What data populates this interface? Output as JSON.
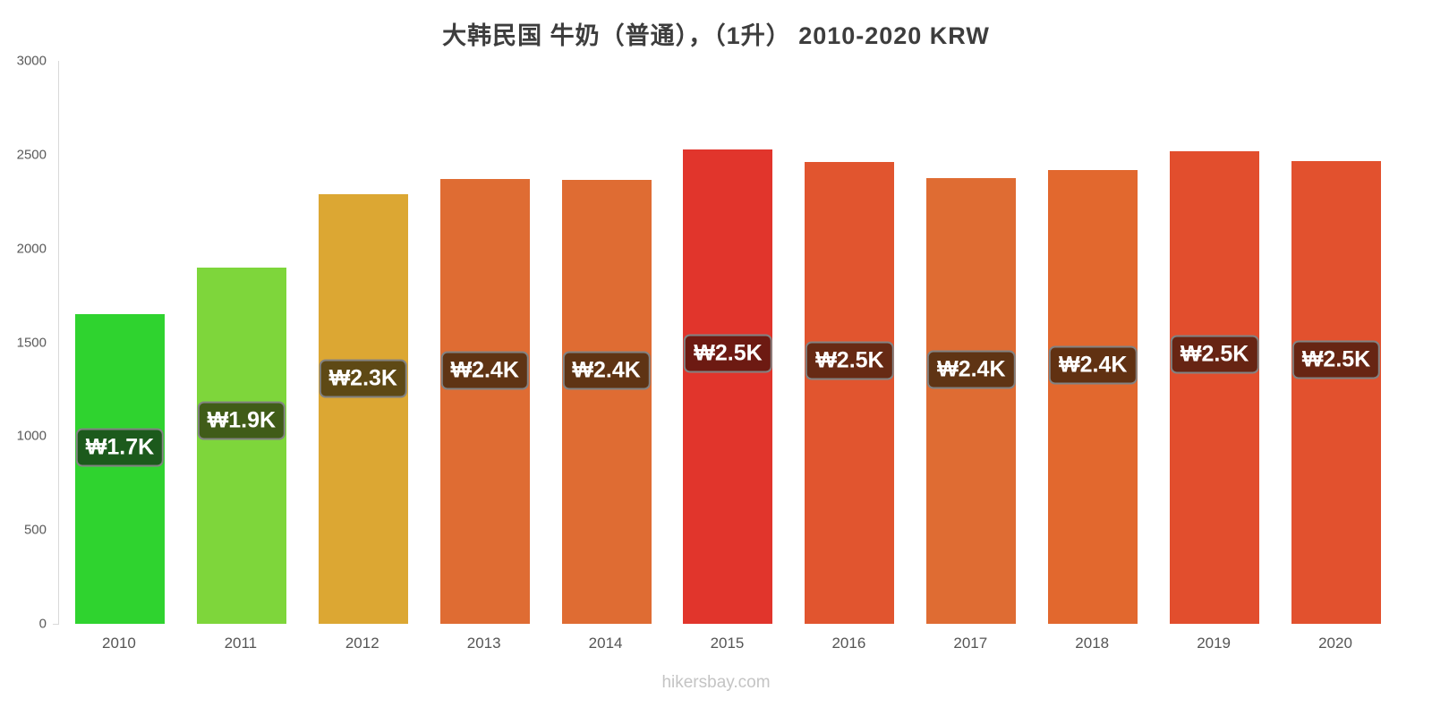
{
  "title": "大韩民国 牛奶（普通），（1升） 2010-2020 KRW",
  "footer": "hikersbay.com",
  "chart_data": {
    "type": "bar",
    "title": "大韩民国 牛奶（普通），（1升） 2010-2020 KRW",
    "categories": [
      "2010",
      "2011",
      "2012",
      "2013",
      "2014",
      "2015",
      "2016",
      "2017",
      "2018",
      "2019",
      "2020"
    ],
    "values": [
      1650,
      1900,
      2290,
      2370,
      2365,
      2530,
      2460,
      2375,
      2420,
      2520,
      2465
    ],
    "bar_labels": [
      "₩1.7K",
      "₩1.9K",
      "₩2.3K",
      "₩2.4K",
      "₩2.4K",
      "₩2.5K",
      "₩2.5K",
      "₩2.4K",
      "₩2.4K",
      "₩2.5K",
      "₩2.5K"
    ],
    "bar_colors": [
      "#2fd32f",
      "#7ed63b",
      "#dca733",
      "#df6c33",
      "#df6c33",
      "#e1352c",
      "#e1552f",
      "#df6c33",
      "#e2682e",
      "#e24e2d",
      "#e2512e"
    ],
    "label_bg_colors": [
      "#1c5a1c",
      "#405c18",
      "#5e4915",
      "#5f3414",
      "#5f3414",
      "#6d1a12",
      "#672a14",
      "#5f3414",
      "#613112",
      "#672413",
      "#672513"
    ],
    "xlabel": "",
    "ylabel": "",
    "ylim": [
      0,
      3000
    ],
    "yticks": [
      0,
      500,
      1000,
      1500,
      2000,
      2500,
      3000
    ],
    "grid": false,
    "legend": false
  }
}
